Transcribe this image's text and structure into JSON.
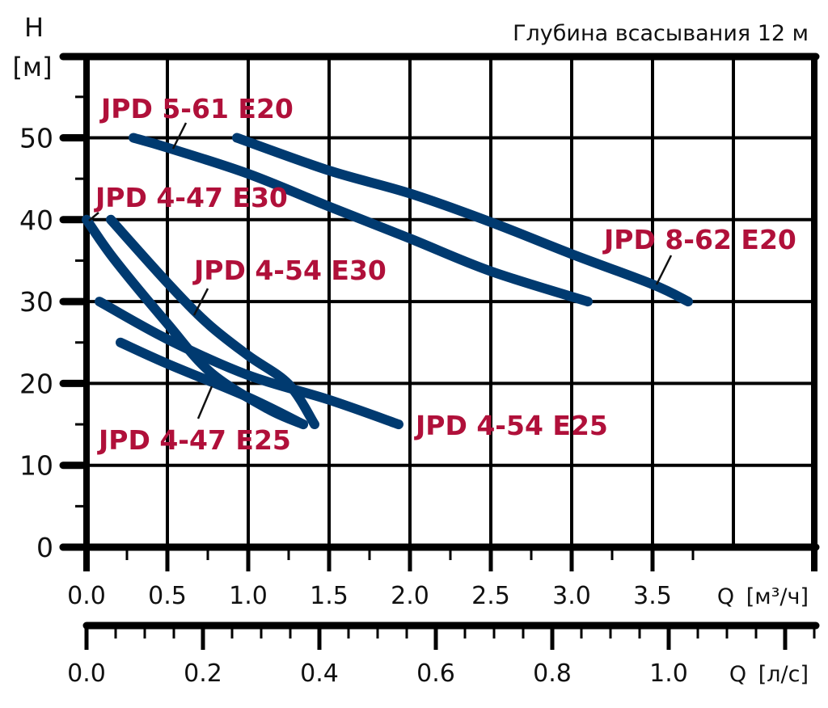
{
  "chart_data": {
    "type": "line",
    "title": "Глубина всасывания 12 м",
    "ylabel": "H",
    "ylabel_unit": "[м]",
    "xlabel": "Q",
    "xlabel_unit": "[м³/ч]",
    "x2label": "Q",
    "x2label_unit": "[л/с]",
    "xlim": [
      0,
      4.5
    ],
    "ylim": [
      0,
      60
    ],
    "x_ticks": [
      "0.0",
      "0.5",
      "1.0",
      "1.5",
      "2.0",
      "2.5",
      "3.0",
      "3.5"
    ],
    "x2_ticks": [
      "0.0",
      "0.2",
      "0.4",
      "0.6",
      "0.8",
      "1.0"
    ],
    "y_ticks": [
      "0",
      "10",
      "20",
      "30",
      "40",
      "50"
    ],
    "grid": true,
    "line_color": "#003a70",
    "label_color": "#b0103a",
    "series": [
      {
        "name": "JPD 5-61 E20",
        "x": [
          0.29,
          0.5,
          1.0,
          1.5,
          2.0,
          2.5,
          3.1
        ],
        "y": [
          50,
          48.8,
          45.6,
          41.6,
          37.7,
          33.7,
          30
        ]
      },
      {
        "name": "JPD 8-62 E20",
        "x": [
          0.93,
          1.5,
          2.0,
          2.5,
          3.0,
          3.5,
          3.72
        ],
        "y": [
          50,
          46,
          43.2,
          39.7,
          35.8,
          32.1,
          30
        ]
      },
      {
        "name": "JPD 4-47 E30",
        "x": [
          0.0,
          0.17,
          0.5,
          0.77,
          1.12,
          1.34
        ],
        "y": [
          40,
          35.2,
          27.3,
          21.3,
          16.9,
          15
        ]
      },
      {
        "name": "JPD 4-54 E30",
        "x": [
          0.15,
          0.5,
          0.75,
          1.0,
          1.25,
          1.41
        ],
        "y": [
          40,
          32.3,
          27.3,
          23.4,
          19.9,
          15
        ]
      },
      {
        "name": "JPD 4-54 E25",
        "x": [
          0.08,
          0.5,
          1.0,
          1.5,
          1.93
        ],
        "y": [
          30,
          25.4,
          21,
          18,
          15
        ]
      },
      {
        "name": "JPD 4-47 E25",
        "x": [
          0.21,
          0.5,
          1.0,
          1.34
        ],
        "y": [
          25,
          22.4,
          18.3,
          15
        ]
      }
    ]
  }
}
